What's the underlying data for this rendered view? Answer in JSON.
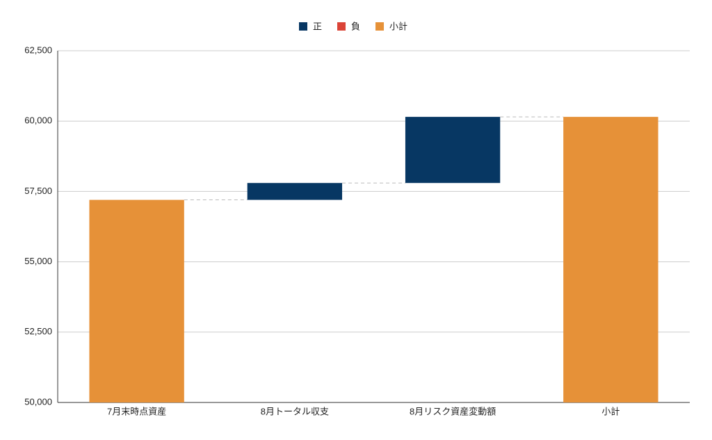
{
  "chart_data": {
    "type": "waterfall",
    "categories": [
      "7月末時点資産",
      "8月トータル収支",
      "8月リスク資産変動額",
      "小計"
    ],
    "values": [
      57200,
      600,
      2350,
      60150
    ],
    "measure": [
      "total",
      "relative",
      "relative",
      "total"
    ],
    "legend": [
      {
        "name": "正",
        "color": "#073763"
      },
      {
        "name": "負",
        "color": "#db4437"
      },
      {
        "name": "小計",
        "color": "#e69138"
      }
    ],
    "ylim": [
      50000,
      62500
    ],
    "yticks": [
      {
        "value": 50000,
        "label": "50,000"
      },
      {
        "value": 52500,
        "label": "52,500"
      },
      {
        "value": 55000,
        "label": "55,000"
      },
      {
        "value": 57500,
        "label": "57,500"
      },
      {
        "value": 60000,
        "label": "60,000"
      },
      {
        "value": 62500,
        "label": "62,500"
      }
    ],
    "grid": true,
    "legend_position": "top"
  }
}
